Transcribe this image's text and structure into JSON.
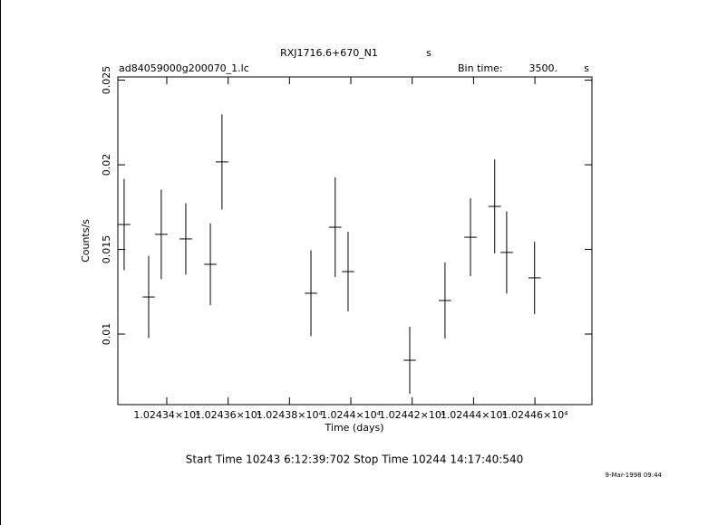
{
  "chart_data": {
    "type": "errorbar",
    "title": "RXJ1716.6+670_N1",
    "title_unit": "s",
    "subtitle": "ad84059000g200070_1.lc",
    "bin_time_label": "Bin time:",
    "bin_time": "3500.",
    "bin_time_unit": "s",
    "x_label": "Time (days)",
    "y_label": "Counts/s",
    "footer": "Start Time 10243  6:12:39:702    Stop Time 10244 14:17:40:540",
    "timestamp": "9-Mar-1998 09:44",
    "color": "#000000",
    "x": [
      10243.261,
      10243.341,
      10243.382,
      10243.462,
      10243.542,
      10243.58,
      10243.87,
      10243.949,
      10243.991,
      10244.192,
      10244.307,
      10244.39,
      10244.469,
      10244.508,
      10244.599
    ],
    "values": [
      0.01647,
      0.01219,
      0.01589,
      0.01562,
      0.01412,
      0.02017,
      0.01241,
      0.01631,
      0.01369,
      0.00845,
      0.01198,
      0.01572,
      0.01754,
      0.01482,
      0.01332
    ],
    "errors": [
      0.0027,
      0.00243,
      0.00265,
      0.00211,
      0.00241,
      0.00281,
      0.00254,
      0.00294,
      0.00235,
      0.00198,
      0.00225,
      0.0023,
      0.00278,
      0.00243,
      0.00214
    ],
    "xlim": [
      10243.2405,
      10244.786
    ],
    "ylim": [
      0.00583,
      0.02519
    ],
    "xticks": [
      {
        "value": 10243.4,
        "label": "1.02434×10⁴"
      },
      {
        "value": 10243.6,
        "label": "1.02436×10⁴"
      },
      {
        "value": 10243.8,
        "label": "1.02438×10⁴"
      },
      {
        "value": 10244.0,
        "label": "1.0244×10⁴"
      },
      {
        "value": 10244.2,
        "label": "1.02442×10⁴"
      },
      {
        "value": 10244.4,
        "label": "1.02444×10⁴"
      },
      {
        "value": 10244.6,
        "label": "1.02446×10⁴"
      }
    ],
    "yticks": [
      0.01,
      0.015,
      0.02,
      0.025
    ]
  }
}
